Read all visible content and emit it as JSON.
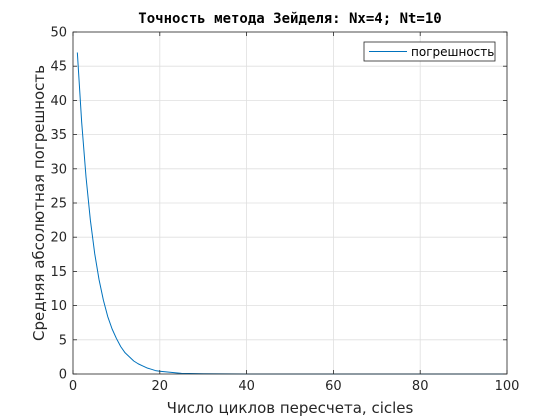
{
  "chart_data": {
    "type": "line",
    "title": "Точность метода Зейделя: Nx=4; Nt=10",
    "xlabel": "Число циклов пересчета, cicles",
    "ylabel": "Средняя абсолютная погрешность",
    "xlim": [
      0,
      100
    ],
    "ylim": [
      0,
      50
    ],
    "xticks": [
      0,
      20,
      40,
      60,
      80,
      100
    ],
    "yticks": [
      0,
      5,
      10,
      15,
      20,
      25,
      30,
      35,
      40,
      45,
      50
    ],
    "grid": true,
    "legend_position": "top-right",
    "series": [
      {
        "name": "погрешность",
        "color": "#0072BD",
        "x": [
          1,
          2,
          3,
          4,
          5,
          6,
          7,
          8,
          9,
          10,
          11,
          12,
          13,
          14,
          15,
          16,
          17,
          18,
          19,
          20,
          25,
          30,
          40,
          50,
          60,
          70,
          80,
          90,
          100
        ],
        "y": [
          47.0,
          36.8,
          28.8,
          22.5,
          17.6,
          13.8,
          10.8,
          8.4,
          6.6,
          5.2,
          4.0,
          3.1,
          2.5,
          1.9,
          1.5,
          1.2,
          0.9,
          0.7,
          0.5,
          0.4,
          0.1,
          0.03,
          0.0,
          0.0,
          0.0,
          0.0,
          0.0,
          0.0,
          0.0
        ]
      }
    ]
  }
}
